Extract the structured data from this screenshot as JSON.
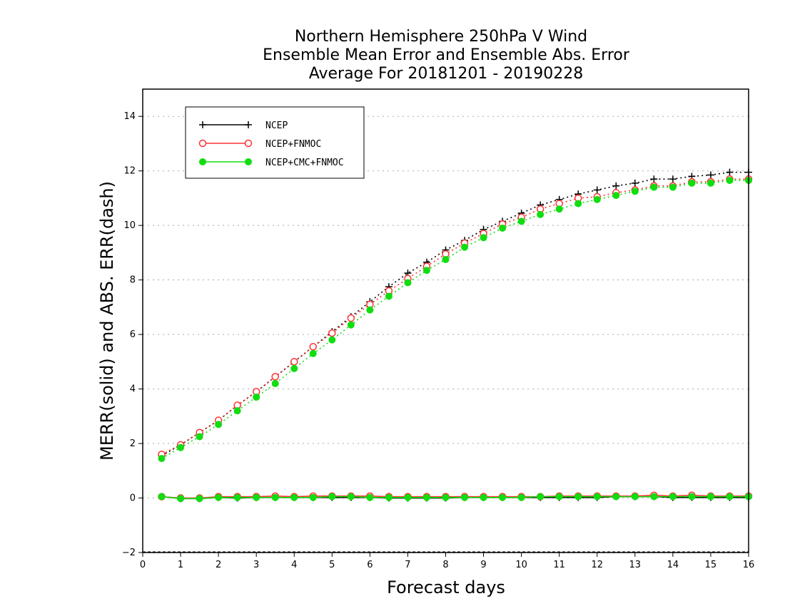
{
  "chart_data": {
    "type": "line",
    "title": [
      "Northern Hemisphere 250hPa V Wind",
      "Ensemble Mean Error and Ensemble Abs. Error",
      "Average For 20181201 - 20190228"
    ],
    "xlabel": "Forecast days",
    "ylabel": "MERR(solid) and ABS. ERR(dash)",
    "xlim": [
      0,
      16
    ],
    "ylim": [
      -2,
      15
    ],
    "xticks": [
      0,
      1,
      2,
      3,
      4,
      5,
      6,
      7,
      8,
      9,
      10,
      11,
      12,
      13,
      14,
      15,
      16
    ],
    "yticks": [
      -2,
      0,
      2,
      4,
      6,
      8,
      10,
      12,
      14
    ],
    "grid": "horizontal dotted",
    "legend_position": "top-left",
    "x": [
      0.5,
      1,
      1.5,
      2,
      2.5,
      3,
      3.5,
      4,
      4.5,
      5,
      5.5,
      6,
      6.5,
      7,
      7.5,
      8,
      8.5,
      9,
      9.5,
      10,
      10.5,
      11,
      11.5,
      12,
      12.5,
      13,
      13.5,
      14,
      14.5,
      15,
      15.5,
      16
    ],
    "series": [
      {
        "name": "NCEP",
        "color": "#000000",
        "marker": "plus",
        "abs_err": [
          1.55,
          1.95,
          2.4,
          2.85,
          3.4,
          3.9,
          4.45,
          5.0,
          5.55,
          6.1,
          6.65,
          7.2,
          7.75,
          8.25,
          8.65,
          9.1,
          9.45,
          9.85,
          10.15,
          10.45,
          10.75,
          10.95,
          11.15,
          11.3,
          11.45,
          11.55,
          11.7,
          11.7,
          11.8,
          11.85,
          11.95,
          11.95
        ],
        "mean_err": [
          0.05,
          -0.02,
          -0.02,
          0.02,
          0.0,
          0.02,
          0.02,
          0.02,
          0.02,
          0.02,
          0.02,
          0.02,
          0.0,
          0.0,
          0.0,
          0.0,
          0.02,
          0.02,
          0.02,
          0.02,
          0.02,
          0.02,
          0.02,
          0.02,
          0.05,
          0.05,
          0.05,
          0.02,
          0.02,
          0.02,
          0.02,
          0.02
        ]
      },
      {
        "name": "NCEP+FNMOC",
        "color": "#ff3333",
        "marker": "open-circle",
        "abs_err": [
          1.6,
          1.95,
          2.4,
          2.85,
          3.4,
          3.9,
          4.45,
          5.0,
          5.55,
          6.05,
          6.6,
          7.1,
          7.6,
          8.05,
          8.5,
          8.95,
          9.35,
          9.7,
          10.05,
          10.3,
          10.6,
          10.8,
          11.0,
          11.05,
          11.2,
          11.3,
          11.45,
          11.45,
          11.6,
          11.6,
          11.7,
          11.7
        ],
        "mean_err": [
          0.05,
          0.0,
          0.0,
          0.05,
          0.05,
          0.05,
          0.07,
          0.05,
          0.07,
          0.07,
          0.07,
          0.07,
          0.05,
          0.05,
          0.05,
          0.05,
          0.05,
          0.05,
          0.05,
          0.05,
          0.05,
          0.07,
          0.07,
          0.07,
          0.07,
          0.07,
          0.1,
          0.07,
          0.1,
          0.07,
          0.07,
          0.07
        ]
      },
      {
        "name": "NCEP+CMC+FNMOC",
        "color": "#11dd11",
        "marker": "filled-circle",
        "abs_err": [
          1.45,
          1.85,
          2.25,
          2.7,
          3.2,
          3.7,
          4.2,
          4.75,
          5.3,
          5.8,
          6.35,
          6.9,
          7.4,
          7.9,
          8.35,
          8.75,
          9.2,
          9.55,
          9.9,
          10.15,
          10.4,
          10.6,
          10.8,
          10.95,
          11.1,
          11.25,
          11.4,
          11.4,
          11.55,
          11.55,
          11.65,
          11.65
        ],
        "mean_err": [
          0.05,
          -0.02,
          -0.02,
          0.02,
          0.02,
          0.02,
          0.02,
          0.02,
          0.02,
          0.05,
          0.05,
          0.02,
          0.02,
          0.02,
          0.02,
          0.02,
          0.02,
          0.02,
          0.02,
          0.02,
          0.05,
          0.05,
          0.05,
          0.05,
          0.05,
          0.05,
          0.05,
          0.05,
          0.05,
          0.05,
          0.05,
          0.05
        ]
      }
    ]
  }
}
